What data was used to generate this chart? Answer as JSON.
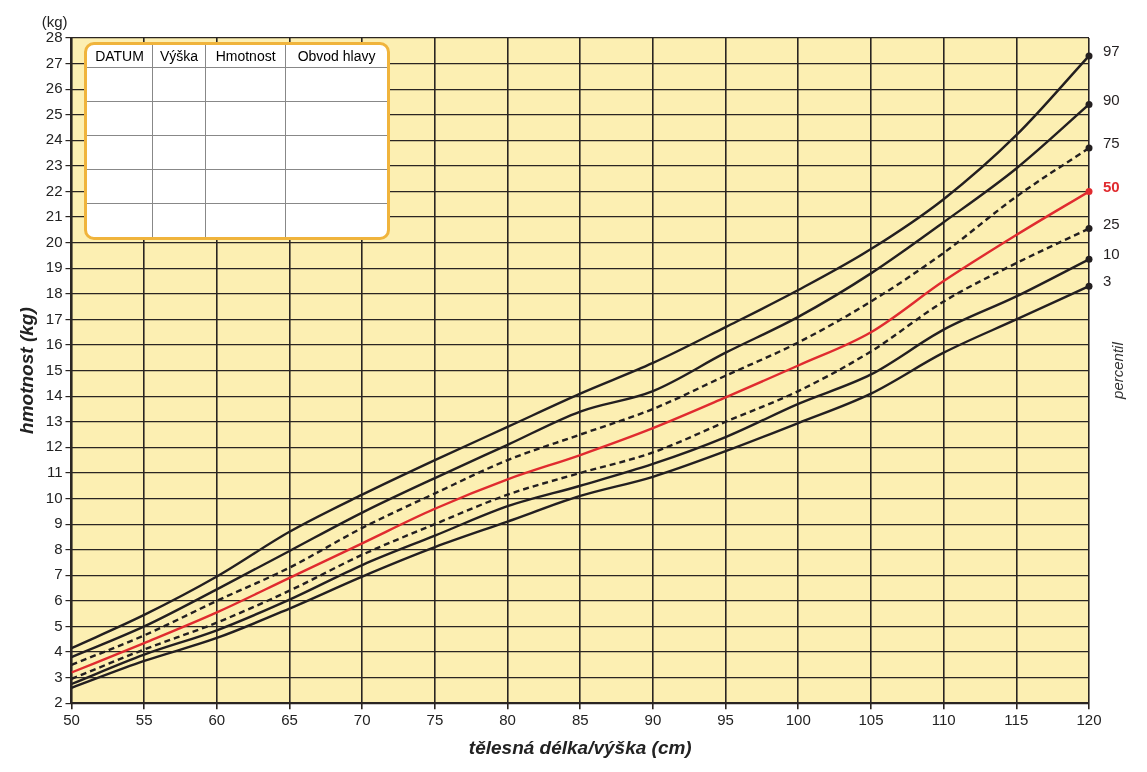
{
  "chart_data": {
    "type": "line",
    "xlabel": "tělesná délka/výška (cm)",
    "ylabel": "hmotnost (kg)",
    "legend_title": "percentil",
    "annotations": [
      "(kg)",
      "DATUM",
      "Výška",
      "Hmotnost",
      "Obvod hlavy"
    ],
    "x": [
      50,
      55,
      60,
      65,
      70,
      75,
      80,
      85,
      90,
      95,
      100,
      105,
      110,
      115,
      120
    ],
    "xlim": [
      50,
      120
    ],
    "xticks": [
      50,
      55,
      60,
      65,
      70,
      75,
      80,
      85,
      90,
      95,
      100,
      105,
      110,
      115,
      120
    ],
    "ylim": [
      2,
      28
    ],
    "yticks": [
      2,
      3,
      4,
      5,
      6,
      7,
      8,
      9,
      10,
      11,
      12,
      13,
      14,
      15,
      16,
      17,
      18,
      19,
      20,
      21,
      22,
      23,
      24,
      25,
      26,
      27,
      28
    ],
    "grid": true,
    "legend": "right",
    "marker": "none",
    "series": [
      {
        "name": "97",
        "color": "#231f20",
        "line_style": "solid",
        "values": [
          4.15,
          5.45,
          6.95,
          8.7,
          10.15,
          11.5,
          12.8,
          14.1,
          15.3,
          16.7,
          18.15,
          19.75,
          21.7,
          24.2,
          27.3
        ]
      },
      {
        "name": "90",
        "color": "#231f20",
        "line_style": "solid",
        "values": [
          3.8,
          5.0,
          6.45,
          7.95,
          9.45,
          10.8,
          12.1,
          13.4,
          14.2,
          15.7,
          17.1,
          18.8,
          20.8,
          22.9,
          25.4
        ]
      },
      {
        "name": "75",
        "color": "#231f20",
        "line_style": "dashed",
        "values": [
          3.5,
          4.65,
          6.0,
          7.3,
          8.85,
          10.2,
          11.5,
          12.5,
          13.5,
          14.8,
          16.1,
          17.7,
          19.6,
          21.8,
          23.7
        ]
      },
      {
        "name": "50",
        "color": "#e02b2f",
        "line_style": "solid",
        "values": [
          3.2,
          4.35,
          5.55,
          6.9,
          8.25,
          9.6,
          10.75,
          11.7,
          12.75,
          13.95,
          15.2,
          16.5,
          18.5,
          20.3,
          22.0
        ]
      },
      {
        "name": "25",
        "color": "#231f20",
        "line_style": "dashed",
        "values": [
          2.95,
          4.1,
          5.15,
          6.4,
          7.8,
          9.0,
          10.15,
          11.0,
          11.8,
          13.0,
          14.2,
          15.75,
          17.7,
          19.2,
          20.55
        ]
      },
      {
        "name": "10",
        "color": "#231f20",
        "line_style": "solid",
        "values": [
          2.75,
          3.9,
          4.85,
          6.05,
          7.4,
          8.55,
          9.7,
          10.5,
          11.35,
          12.4,
          13.7,
          14.85,
          16.6,
          17.9,
          19.35
        ]
      },
      {
        "name": "3",
        "color": "#231f20",
        "line_style": "solid",
        "values": [
          2.6,
          3.65,
          4.55,
          5.7,
          6.95,
          8.1,
          9.1,
          10.1,
          10.85,
          11.85,
          12.95,
          14.1,
          15.7,
          17.0,
          18.3
        ]
      }
    ]
  }
}
